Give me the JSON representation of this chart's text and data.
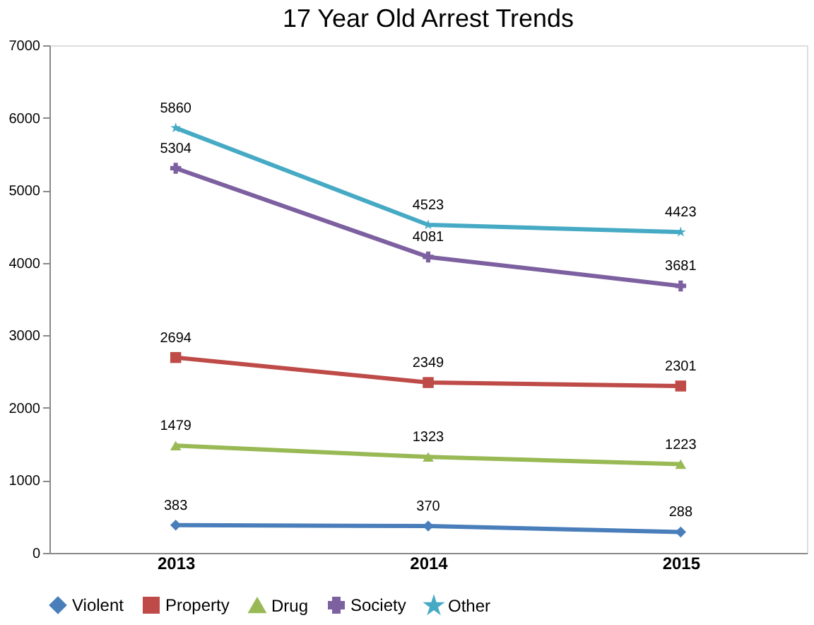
{
  "chart_data": {
    "type": "line",
    "title": "17 Year Old Arrest Trends",
    "categories": [
      "2013",
      "2014",
      "2015"
    ],
    "series": [
      {
        "name": "Violent",
        "color": "#4a7ebb",
        "marker": "diamond",
        "values": [
          383,
          370,
          288
        ]
      },
      {
        "name": "Property",
        "color": "#be4b48",
        "marker": "square",
        "values": [
          2694,
          2349,
          2301
        ]
      },
      {
        "name": "Drug",
        "color": "#98b954",
        "marker": "triangle",
        "values": [
          1479,
          1323,
          1223
        ]
      },
      {
        "name": "Society",
        "color": "#7d60a0",
        "marker": "cross",
        "values": [
          5304,
          4081,
          3681
        ]
      },
      {
        "name": "Other",
        "color": "#46aac5",
        "marker": "star",
        "values": [
          5860,
          4523,
          4423
        ]
      }
    ],
    "ylim": [
      0,
      7000
    ],
    "yticks": [
      0,
      1000,
      2000,
      3000,
      4000,
      5000,
      6000,
      7000
    ],
    "grid": false,
    "legend": "bottom",
    "data_labels": true,
    "line_style": "solid"
  }
}
